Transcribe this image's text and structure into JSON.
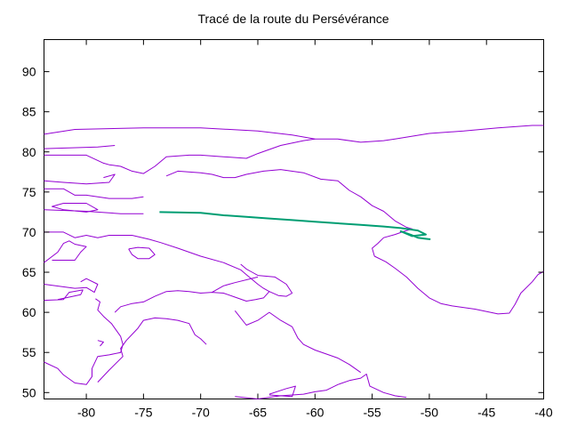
{
  "chart_data": {
    "type": "line",
    "title": "Tracé de la route du Persévérance",
    "xlabel": "",
    "ylabel": "",
    "xlim": [
      -83.7,
      -40
    ],
    "ylim": [
      49.2,
      94
    ],
    "x_ticks": [
      -80,
      -75,
      -70,
      -65,
      -60,
      -55,
      -50,
      -45,
      -40
    ],
    "y_ticks": [
      50,
      55,
      60,
      65,
      70,
      75,
      80,
      85,
      90
    ],
    "grid": false,
    "legend": "none",
    "series": [
      {
        "color": "#9400d3",
        "segments": [
          [
            [
              -83.7,
              82.2
            ],
            [
              -81,
              82.8
            ],
            [
              -75,
              83
            ],
            [
              -70,
              83
            ],
            [
              -65,
              82.6
            ],
            [
              -62,
              82.1
            ],
            [
              -60,
              81.6
            ],
            [
              -58,
              81.6
            ],
            [
              -56,
              81.2
            ],
            [
              -54,
              81.4
            ],
            [
              -53,
              81.6
            ],
            [
              -50,
              82.3
            ],
            [
              -47,
              82.6
            ],
            [
              -44,
              83
            ],
            [
              -41,
              83.3
            ],
            [
              -40,
              83.3
            ]
          ],
          [
            [
              -83.7,
              80.4
            ],
            [
              -79,
              80.6
            ],
            [
              -77.5,
              80.8
            ]
          ],
          [
            [
              -83.7,
              79.6
            ],
            [
              -80,
              79.6
            ],
            [
              -78.5,
              78.6
            ],
            [
              -78,
              78.4
            ],
            [
              -77,
              78.2
            ],
            [
              -76,
              77.6
            ],
            [
              -75,
              77.3
            ],
            [
              -74,
              78.2
            ],
            [
              -73,
              79.4
            ],
            [
              -71,
              79.6
            ],
            [
              -70,
              79.6
            ],
            [
              -68,
              79.4
            ],
            [
              -66,
              79.2
            ],
            [
              -65,
              79.8
            ],
            [
              -63,
              80.8
            ],
            [
              -61,
              81.4
            ],
            [
              -60,
              81.6
            ]
          ],
          [
            [
              -83.7,
              76.4
            ],
            [
              -82,
              76.2
            ],
            [
              -80,
              76
            ],
            [
              -78,
              76.2
            ],
            [
              -77.5,
              77.2
            ],
            [
              -78.5,
              76.8
            ]
          ],
          [
            [
              -83.7,
              75.4
            ],
            [
              -82,
              75.4
            ],
            [
              -81,
              74.6
            ],
            [
              -80,
              74.6
            ],
            [
              -78,
              74.2
            ],
            [
              -76,
              74.2
            ],
            [
              -75,
              74.4
            ]
          ],
          [
            [
              -73,
              77
            ],
            [
              -72,
              77.6
            ],
            [
              -70,
              77.4
            ],
            [
              -69,
              77.2
            ],
            [
              -68,
              76.8
            ],
            [
              -67,
              76.8
            ],
            [
              -66,
              77.2
            ],
            [
              -64.5,
              77.6
            ],
            [
              -63,
              77.8
            ],
            [
              -61,
              77.4
            ],
            [
              -59.5,
              76.6
            ],
            [
              -58,
              76.4
            ],
            [
              -57,
              75.2
            ],
            [
              -56,
              74.4
            ],
            [
              -55,
              73.3
            ],
            [
              -54,
              72.6
            ],
            [
              -53,
              71.4
            ],
            [
              -52,
              70.6
            ],
            [
              -51.5,
              70.4
            ],
            [
              -52.2,
              70.1
            ],
            [
              -53,
              69.7
            ],
            [
              -54,
              69.3
            ],
            [
              -54.5,
              68.6
            ],
            [
              -55,
              68
            ],
            [
              -54.8,
              67
            ],
            [
              -53.8,
              66.3
            ],
            [
              -53,
              65.5
            ],
            [
              -52,
              64.4
            ],
            [
              -51,
              63
            ],
            [
              -50,
              61.8
            ],
            [
              -49,
              61.1
            ],
            [
              -48,
              60.8
            ],
            [
              -46,
              60.4
            ],
            [
              -44,
              59.8
            ],
            [
              -43,
              59.9
            ],
            [
              -42.5,
              61
            ],
            [
              -42,
              62.4
            ],
            [
              -41,
              63.8
            ],
            [
              -40.5,
              64.7
            ],
            [
              -40,
              65.1
            ]
          ],
          [
            [
              -82,
              73.6
            ],
            [
              -80,
              73.6
            ],
            [
              -79,
              72.8
            ],
            [
              -80,
              72.5
            ],
            [
              -82,
              72.8
            ],
            [
              -83,
              73.2
            ],
            [
              -82,
              73.6
            ]
          ],
          [
            [
              -83.7,
              72.8
            ],
            [
              -80,
              72.6
            ],
            [
              -77,
              72.3
            ],
            [
              -76,
              72.3
            ],
            [
              -75,
              72.3
            ]
          ],
          [
            [
              -83.7,
              70
            ],
            [
              -82,
              70
            ],
            [
              -81,
              69.3
            ],
            [
              -80,
              69.6
            ],
            [
              -79,
              69.3
            ],
            [
              -78,
              69.6
            ],
            [
              -76,
              69.6
            ],
            [
              -74.5,
              69.1
            ],
            [
              -73.5,
              68.7
            ],
            [
              -72,
              68
            ],
            [
              -70,
              67
            ],
            [
              -68,
              66.2
            ],
            [
              -66.5,
              65.3
            ],
            [
              -66,
              64.7
            ],
            [
              -65,
              63.5
            ],
            [
              -64.5,
              63
            ],
            [
              -64,
              62.6
            ],
            [
              -64.5,
              61.8
            ],
            [
              -65.2,
              61.6
            ],
            [
              -66,
              61.4
            ],
            [
              -67,
              61.9
            ],
            [
              -68,
              62.4
            ],
            [
              -69,
              62.5
            ],
            [
              -70,
              62.4
            ],
            [
              -71,
              62.6
            ],
            [
              -72,
              62.7
            ],
            [
              -73,
              62.6
            ],
            [
              -74,
              62
            ],
            [
              -75,
              61.3
            ],
            [
              -76,
              61.1
            ],
            [
              -77,
              60.7
            ],
            [
              -77.5,
              60
            ]
          ],
          [
            [
              -83.7,
              66.2
            ],
            [
              -82.5,
              67.5
            ],
            [
              -82,
              68.6
            ],
            [
              -81.5,
              68.9
            ],
            [
              -81,
              68.5
            ],
            [
              -80,
              68.2
            ],
            [
              -80.5,
              67.5
            ],
            [
              -81,
              66.5
            ],
            [
              -82,
              66.5
            ],
            [
              -83,
              66.5
            ]
          ],
          [
            [
              -76.3,
              67.9
            ],
            [
              -75.5,
              68.1
            ],
            [
              -74.5,
              68
            ],
            [
              -74,
              67.2
            ],
            [
              -74.5,
              66.7
            ],
            [
              -75.5,
              66.7
            ],
            [
              -76,
              67.2
            ],
            [
              -76.3,
              67.9
            ]
          ],
          [
            [
              -83.7,
              61.5
            ],
            [
              -82,
              61.6
            ],
            [
              -81.5,
              62.5
            ],
            [
              -80.3,
              62.8
            ],
            [
              -80.5,
              62.2
            ],
            [
              -81.5,
              61.9
            ],
            [
              -82.5,
              61.6
            ]
          ],
          [
            [
              -83.7,
              63.5
            ],
            [
              -81,
              63
            ],
            [
              -80,
              63.1
            ],
            [
              -79.3,
              62.5
            ],
            [
              -79,
              63.5
            ],
            [
              -80,
              64.2
            ],
            [
              -80.5,
              63.8
            ]
          ],
          [
            [
              -79.2,
              61.7
            ],
            [
              -78.8,
              61.3
            ],
            [
              -79,
              60.3
            ],
            [
              -78.5,
              59.5
            ],
            [
              -77.8,
              58.6
            ],
            [
              -77.5,
              58
            ],
            [
              -77,
              57
            ],
            [
              -76.8,
              56
            ],
            [
              -77,
              55
            ],
            [
              -78,
              54.7
            ],
            [
              -79,
              54.5
            ],
            [
              -79.5,
              53
            ],
            [
              -79.5,
              52
            ],
            [
              -80,
              51
            ],
            [
              -81,
              51.2
            ],
            [
              -82,
              52.2
            ],
            [
              -82.5,
              53
            ],
            [
              -83.7,
              53.8
            ]
          ],
          [
            [
              -79,
              56.5
            ],
            [
              -78.5,
              56.3
            ],
            [
              -78.8,
              55.8
            ]
          ],
          [
            [
              -67,
              49.5
            ],
            [
              -65,
              49.2
            ],
            [
              -63,
              49.6
            ],
            [
              -61,
              49.8
            ],
            [
              -60,
              50.1
            ],
            [
              -59,
              50.3
            ],
            [
              -58,
              51
            ],
            [
              -57,
              51.5
            ],
            [
              -56,
              51.8
            ],
            [
              -55.5,
              52.3
            ],
            [
              -55.2,
              50.8
            ],
            [
              -54,
              50
            ],
            [
              -53,
              49.6
            ],
            [
              -52,
              49.4
            ]
          ],
          [
            [
              -64,
              49.7
            ],
            [
              -62,
              49.5
            ],
            [
              -61.7,
              50.8
            ],
            [
              -62.5,
              50.5
            ],
            [
              -64,
              49.8
            ]
          ],
          [
            [
              -67,
              60.2
            ],
            [
              -66,
              58.4
            ],
            [
              -65,
              59
            ],
            [
              -64,
              60
            ],
            [
              -63,
              59
            ],
            [
              -62,
              58.2
            ],
            [
              -61.5,
              56.8
            ],
            [
              -61,
              56
            ],
            [
              -60,
              55.3
            ],
            [
              -59,
              54.8
            ],
            [
              -58,
              54.3
            ],
            [
              -57,
              53.5
            ],
            [
              -56,
              52.5
            ]
          ],
          [
            [
              -69.5,
              56
            ],
            [
              -70,
              56.7
            ],
            [
              -70.5,
              57.2
            ],
            [
              -71,
              58.6
            ],
            [
              -72,
              59
            ],
            [
              -73,
              59.2
            ],
            [
              -74,
              59.3
            ],
            [
              -75,
              59
            ],
            [
              -75.5,
              58
            ],
            [
              -76.5,
              56.5
            ],
            [
              -77,
              55.5
            ],
            [
              -76.8,
              54.5
            ],
            [
              -78,
              52.8
            ],
            [
              -79,
              51.3
            ]
          ],
          [
            [
              -66.5,
              66
            ],
            [
              -66,
              65.4
            ],
            [
              -65.5,
              65
            ],
            [
              -65,
              64.6
            ],
            [
              -63.5,
              64.4
            ],
            [
              -62.5,
              63.5
            ],
            [
              -62,
              62.4
            ],
            [
              -62.5,
              62
            ],
            [
              -63.2,
              62.1
            ],
            [
              -64,
              62.6
            ]
          ],
          [
            [
              -69,
              62.5
            ],
            [
              -68,
              63.3
            ],
            [
              -67,
              63.7
            ],
            [
              -65,
              64.4
            ]
          ]
        ]
      },
      {
        "color": "#009e73",
        "segments": [
          [
            [
              -73.6,
              72.5
            ],
            [
              -70,
              72.4
            ],
            [
              -68,
              72.1
            ],
            [
              -66,
              71.9
            ],
            [
              -64,
              71.7
            ],
            [
              -62,
              71.5
            ],
            [
              -60,
              71.3
            ],
            [
              -58,
              71.1
            ],
            [
              -56,
              70.9
            ],
            [
              -54,
              70.7
            ],
            [
              -52.5,
              70.5
            ],
            [
              -51,
              70.2
            ],
            [
              -50.3,
              69.7
            ],
            [
              -51.5,
              69.5
            ],
            [
              -52.5,
              70.1
            ],
            [
              -51.5,
              69.6
            ],
            [
              -51,
              69.3
            ],
            [
              -50.5,
              69.2
            ],
            [
              -49.9,
              69.1
            ]
          ]
        ]
      }
    ]
  }
}
